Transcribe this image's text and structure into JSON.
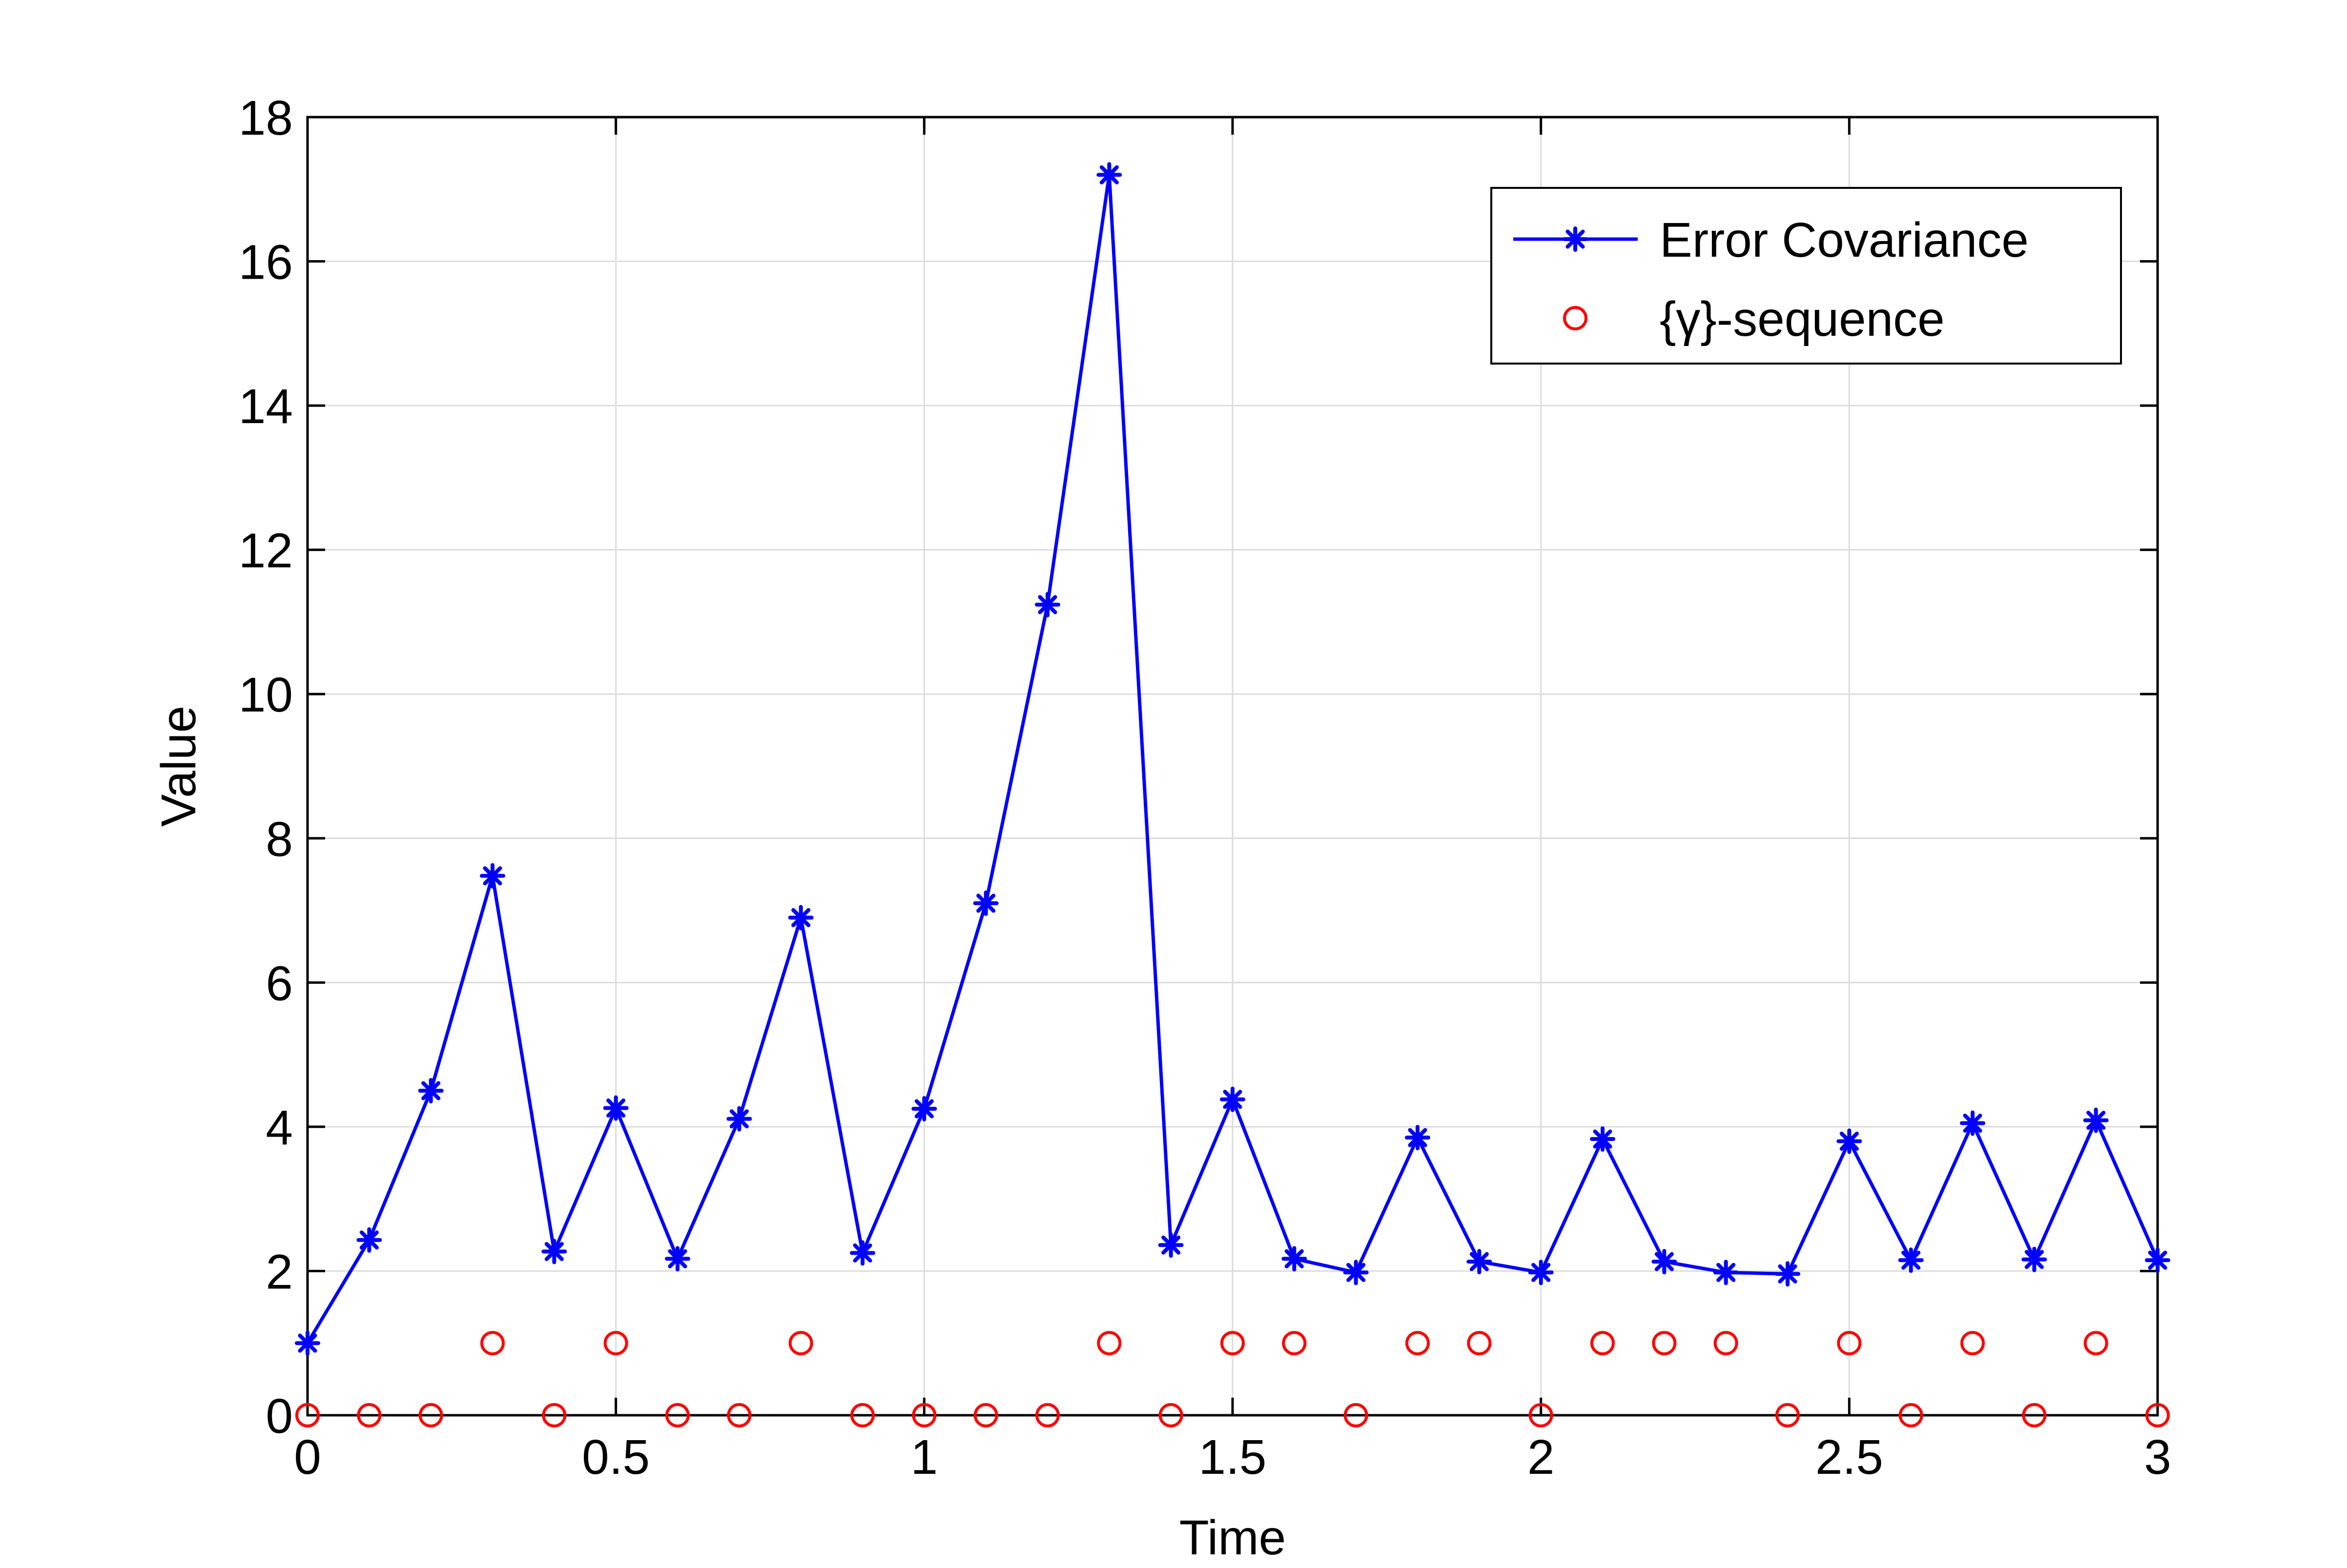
{
  "chart_data": {
    "type": "line",
    "title": "",
    "xlabel": "Time",
    "ylabel": "Value",
    "xlim": [
      0,
      3
    ],
    "ylim": [
      0,
      18
    ],
    "xticks": [
      0,
      0.5,
      1,
      1.5,
      2,
      2.5,
      3
    ],
    "xtick_labels": [
      "0",
      "0.5",
      "1",
      "1.5",
      "2",
      "2.5",
      "3"
    ],
    "yticks": [
      0,
      2,
      4,
      6,
      8,
      10,
      12,
      14,
      16,
      18
    ],
    "ytick_labels": [
      "0",
      "2",
      "4",
      "6",
      "8",
      "10",
      "12",
      "14",
      "16",
      "18"
    ],
    "grid": true,
    "legend_position": "top-right",
    "series": [
      {
        "name": "Error Covariance",
        "style": "line-star",
        "color": "#0000ff",
        "x": [
          0,
          0.1,
          0.2,
          0.3,
          0.4,
          0.5,
          0.6,
          0.7,
          0.8,
          0.9,
          1.0,
          1.1,
          1.2,
          1.3,
          1.4,
          1.5,
          1.6,
          1.7,
          1.8,
          1.9,
          2.0,
          2.1,
          2.2,
          2.3,
          2.4,
          2.5,
          2.6,
          2.7,
          2.8,
          2.9,
          3.0
        ],
        "y": [
          1.0,
          2.43,
          4.5,
          7.48,
          2.27,
          4.26,
          2.17,
          4.11,
          6.9,
          2.25,
          4.25,
          7.1,
          11.24,
          17.2,
          2.36,
          4.38,
          2.17,
          1.98,
          3.85,
          2.13,
          1.98,
          3.83,
          2.13,
          1.98,
          1.96,
          3.8,
          2.15,
          4.05,
          2.16,
          4.09,
          2.15
        ]
      },
      {
        "name": "{γ}-sequence",
        "style": "marker-circle",
        "color": "#ff0000",
        "x": [
          0,
          0.1,
          0.2,
          0.3,
          0.4,
          0.5,
          0.6,
          0.7,
          0.8,
          0.9,
          1.0,
          1.1,
          1.2,
          1.3,
          1.4,
          1.5,
          1.6,
          1.7,
          1.8,
          1.9,
          2.0,
          2.1,
          2.2,
          2.3,
          2.4,
          2.5,
          2.6,
          2.7,
          2.8,
          2.9,
          3.0
        ],
        "y": [
          0,
          0,
          0,
          1,
          0,
          1,
          0,
          0,
          1,
          0,
          0,
          0,
          0,
          1,
          0,
          1,
          1,
          0,
          1,
          1,
          0,
          1,
          1,
          1,
          0,
          1,
          0,
          1,
          0,
          1,
          0
        ]
      }
    ]
  }
}
